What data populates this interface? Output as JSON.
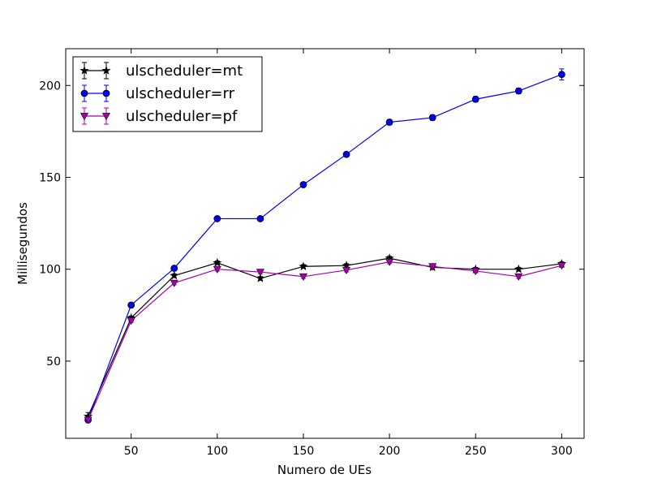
{
  "chart_data": {
    "type": "line",
    "title": "",
    "xlabel": "Numero de UEs",
    "ylabel": "Millisegundos",
    "xlim": [
      12,
      313
    ],
    "ylim": [
      8,
      220
    ],
    "xticks": [
      50,
      100,
      150,
      200,
      250,
      300
    ],
    "yticks": [
      50,
      100,
      150,
      200
    ],
    "grid": false,
    "legend_position": "top-left",
    "x": [
      25,
      50,
      75,
      100,
      125,
      150,
      175,
      200,
      225,
      250,
      275,
      300
    ],
    "series": [
      {
        "name": "ulscheduler=mt",
        "color": "#000000",
        "marker": "star",
        "values": [
          20,
          73.5,
          96.5,
          103.5,
          95,
          101.5,
          102,
          106,
          101,
          100,
          100,
          103
        ],
        "errors": [
          2,
          1,
          1,
          1,
          1,
          1,
          1,
          1,
          1,
          1,
          1,
          1
        ]
      },
      {
        "name": "ulscheduler=rr",
        "color": "#0000ee",
        "marker": "circle",
        "values": [
          18,
          80.5,
          100.5,
          127.5,
          127.5,
          146,
          162.5,
          180,
          182.5,
          192.5,
          197,
          206
        ],
        "errors": [
          1.5,
          1,
          1,
          1,
          1,
          1,
          1,
          1.5,
          1.5,
          1.5,
          1.5,
          3
        ]
      },
      {
        "name": "ulscheduler=pf",
        "color": "#aa00aa",
        "marker": "triangle-down",
        "values": [
          18,
          72,
          92.5,
          100,
          98.5,
          96,
          99.5,
          104,
          101.5,
          99,
          96,
          102
        ],
        "errors": [
          1.5,
          1,
          1,
          1,
          1,
          1,
          1,
          1,
          1,
          1,
          1,
          1
        ]
      }
    ]
  }
}
